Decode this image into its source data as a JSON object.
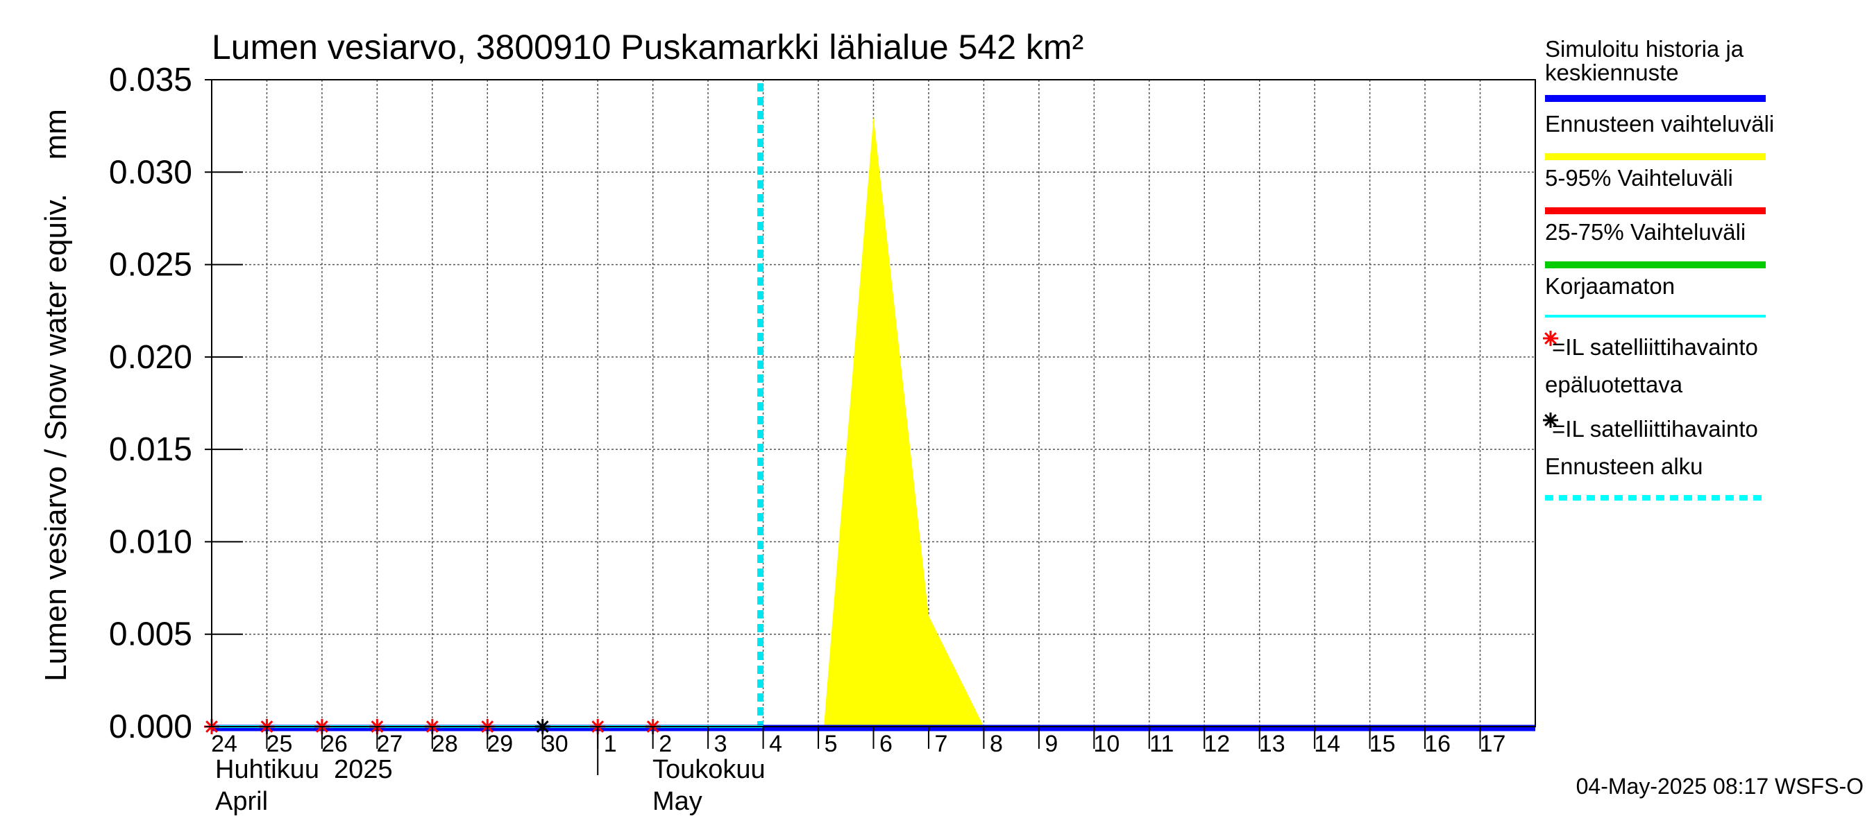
{
  "chart_data": {
    "type": "area",
    "title": "Lumen vesiarvo, 3800910 Puskamarkki lähialue 542 km²",
    "ylabel": "Lumen vesiarvo / Snow water equiv.    mm",
    "ylim": [
      0,
      0.035
    ],
    "yticks": [
      "0.000",
      "0.005",
      "0.010",
      "0.015",
      "0.020",
      "0.025",
      "0.030",
      "0.035"
    ],
    "ytick_values": [
      0,
      0.005,
      0.01,
      0.015,
      0.02,
      0.025,
      0.03,
      0.035
    ],
    "xlim": [
      0,
      24
    ],
    "xtick_labels": [
      "24",
      "25",
      "26",
      "27",
      "28",
      "29",
      "30",
      "1",
      "2",
      "3",
      "4",
      "5",
      "6",
      "7",
      "8",
      "9",
      "10",
      "11",
      "12",
      "13",
      "14",
      "15",
      "16",
      "17"
    ],
    "month_labels": [
      {
        "fi": "Huhtikuu  2025",
        "en": "April",
        "day_index": 0
      },
      {
        "fi": "Toukokuu",
        "en": "May",
        "day_index": 8
      }
    ],
    "forecast_start_day": 10,
    "series": [
      {
        "name": "Ennusteen vaihteluväli",
        "kind": "band",
        "color": "#ffff00",
        "points": [
          [
            11.1,
            0
          ],
          [
            12.0,
            0.033
          ],
          [
            13.0,
            0.006
          ],
          [
            14.0,
            0
          ]
        ]
      },
      {
        "name": "Simuloitu historia ja keskiennuste",
        "kind": "line",
        "color": "#0000ff",
        "points": [
          [
            0,
            0
          ],
          [
            24,
            0
          ]
        ]
      },
      {
        "name": "Korjaamaton",
        "kind": "line",
        "color": "#00ffff",
        "points": [
          [
            0,
            0
          ],
          [
            10,
            0
          ]
        ]
      }
    ],
    "satellite_obs_red": [
      0,
      1,
      2,
      3,
      4,
      5,
      7,
      8
    ],
    "satellite_obs_black": [
      6
    ],
    "legend": [
      {
        "label": "Simuloitu historia ja keskiennuste",
        "color": "#0000ff",
        "style": "thick"
      },
      {
        "label": "Ennusteen vaihteluväli",
        "color": "#ffff00",
        "style": "thick"
      },
      {
        "label": "5-95% Vaihteluväli",
        "color": "#ff0000",
        "style": "thick"
      },
      {
        "label": "25-75% Vaihteluväli",
        "color": "#00cc00",
        "style": "thick"
      },
      {
        "label": "Korjaamaton",
        "color": "#00ffff",
        "style": "thin"
      },
      {
        "label": "=IL satelliittihavainto",
        "color": "#ff0000",
        "style": "star"
      },
      {
        "label": "epäluotettava",
        "color": "#000000",
        "style": "none"
      },
      {
        "label": "=IL satelliittihavainto",
        "color": "#000000",
        "style": "star"
      },
      {
        "label": "Ennusteen alku",
        "color": "#00ffff",
        "style": "dashed"
      }
    ],
    "footer": "04-May-2025 08:17 WSFS-O"
  }
}
